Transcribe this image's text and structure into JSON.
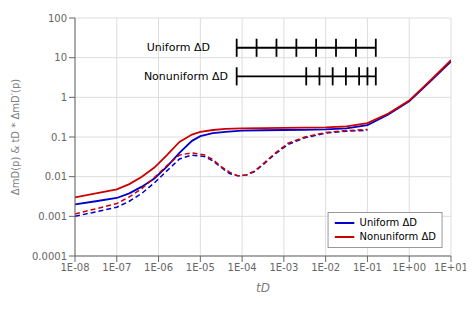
{
  "chart_data": {
    "type": "line",
    "xlabel": "tD",
    "ylabel": "ΔmD(p) & tD * ΔmD′(p)",
    "log": true,
    "xlim": [
      1e-08,
      10
    ],
    "ylim": [
      0.0001,
      100
    ],
    "xticks": [
      {
        "value": 1e-08,
        "label": "1E-08"
      },
      {
        "value": 1e-07,
        "label": "1E-07"
      },
      {
        "value": 1e-06,
        "label": "1E-06"
      },
      {
        "value": 1e-05,
        "label": "1E-05"
      },
      {
        "value": 0.0001,
        "label": "1E-04"
      },
      {
        "value": 0.001,
        "label": "1E-03"
      },
      {
        "value": 0.01,
        "label": "1E-02"
      },
      {
        "value": 0.1,
        "label": "1E-01"
      },
      {
        "value": 1,
        "label": "1E+00"
      },
      {
        "value": 10,
        "label": "1E+01"
      }
    ],
    "yticks": [
      0.0001,
      0.001,
      0.01,
      0.1,
      1,
      10,
      100
    ],
    "grid": true,
    "legend": "lower right",
    "series": [
      {
        "name": "Uniform ΔD",
        "color": "#0000cc",
        "line_style": "solid",
        "x": [
          1e-08,
          3.16227766017e-08,
          1e-07,
          1.99526231497e-07,
          3.98107170553e-07,
          7.94328234724e-07,
          1.58489319246e-06,
          3.16227766017e-06,
          6.3095734448e-06,
          1e-05,
          1.99526231497e-05,
          3.98107170553e-05,
          0.0001,
          0.000316227766017,
          0.001,
          0.00316227766017,
          0.01,
          0.0316227766017,
          0.1,
          0.316227766017,
          1,
          3.16227766017,
          10
        ],
        "values": [
          0.002,
          0.0024,
          0.0029,
          0.0038,
          0.0056,
          0.009,
          0.018,
          0.04,
          0.08,
          0.105,
          0.125,
          0.135,
          0.145,
          0.148,
          0.15,
          0.152,
          0.155,
          0.165,
          0.2,
          0.37,
          0.8,
          2.5,
          8.0
        ]
      },
      {
        "name": "Nonuniform ΔD",
        "color": "#cc0000",
        "line_style": "solid",
        "x": [
          1e-08,
          3.16227766017e-08,
          1e-07,
          1.99526231497e-07,
          3.98107170553e-07,
          7.94328234724e-07,
          1.58489319246e-06,
          3.16227766017e-06,
          6.3095734448e-06,
          1e-05,
          1.99526231497e-05,
          3.98107170553e-05,
          0.0001,
          0.000316227766017,
          0.001,
          0.00316227766017,
          0.01,
          0.0316227766017,
          0.1,
          0.316227766017,
          1,
          3.16227766017,
          10
        ],
        "values": [
          0.003,
          0.0038,
          0.0048,
          0.0065,
          0.01,
          0.017,
          0.035,
          0.075,
          0.115,
          0.135,
          0.15,
          0.16,
          0.165,
          0.167,
          0.17,
          0.172,
          0.175,
          0.185,
          0.225,
          0.39,
          0.83,
          2.65,
          8.6
        ]
      },
      {
        "color": "#0000cc",
        "line_style": "dashed",
        "x": [
          1e-08,
          3.16227766017e-08,
          1e-07,
          1.99526231497e-07,
          3.98107170553e-07,
          7.94328234724e-07,
          1.58489319246e-06,
          3.16227766017e-06,
          6.3095734448e-06,
          1.25892541179e-05,
          1.99526231497e-05,
          3.16227766017e-05,
          5.01187233627e-05,
          7.94328234724e-05,
          0.000125892541179,
          0.000199526231497,
          0.000316227766017,
          0.00063095734448,
          0.00125892541179,
          0.00316227766017,
          0.01,
          0.0316227766017,
          0.1
        ],
        "values": [
          0.001,
          0.0013,
          0.0017,
          0.0024,
          0.0038,
          0.007,
          0.014,
          0.028,
          0.035,
          0.032,
          0.025,
          0.017,
          0.012,
          0.0105,
          0.011,
          0.0135,
          0.02,
          0.038,
          0.065,
          0.095,
          0.125,
          0.14,
          0.148
        ]
      },
      {
        "color": "#cc0000",
        "line_style": "dashed",
        "x": [
          1e-08,
          3.16227766017e-08,
          1e-07,
          1.99526231497e-07,
          3.98107170553e-07,
          7.94328234724e-07,
          1.58489319246e-06,
          3.16227766017e-06,
          6.3095734448e-06,
          1.25892541179e-05,
          1.99526231497e-05,
          3.16227766017e-05,
          5.01187233627e-05,
          7.94328234724e-05,
          0.000125892541179,
          0.000199526231497,
          0.000316227766017,
          0.00063095734448,
          0.00125892541179,
          0.00316227766017,
          0.01,
          0.0316227766017,
          0.1
        ],
        "values": [
          0.00115,
          0.00155,
          0.0021,
          0.0031,
          0.005,
          0.0095,
          0.019,
          0.035,
          0.04,
          0.035,
          0.027,
          0.018,
          0.013,
          0.0105,
          0.011,
          0.014,
          0.021,
          0.04,
          0.07,
          0.1,
          0.13,
          0.145,
          0.155
        ]
      }
    ],
    "annotations": [
      {
        "text": "Uniform ΔD"
      },
      {
        "text": "Nonuniform ΔD"
      }
    ]
  }
}
